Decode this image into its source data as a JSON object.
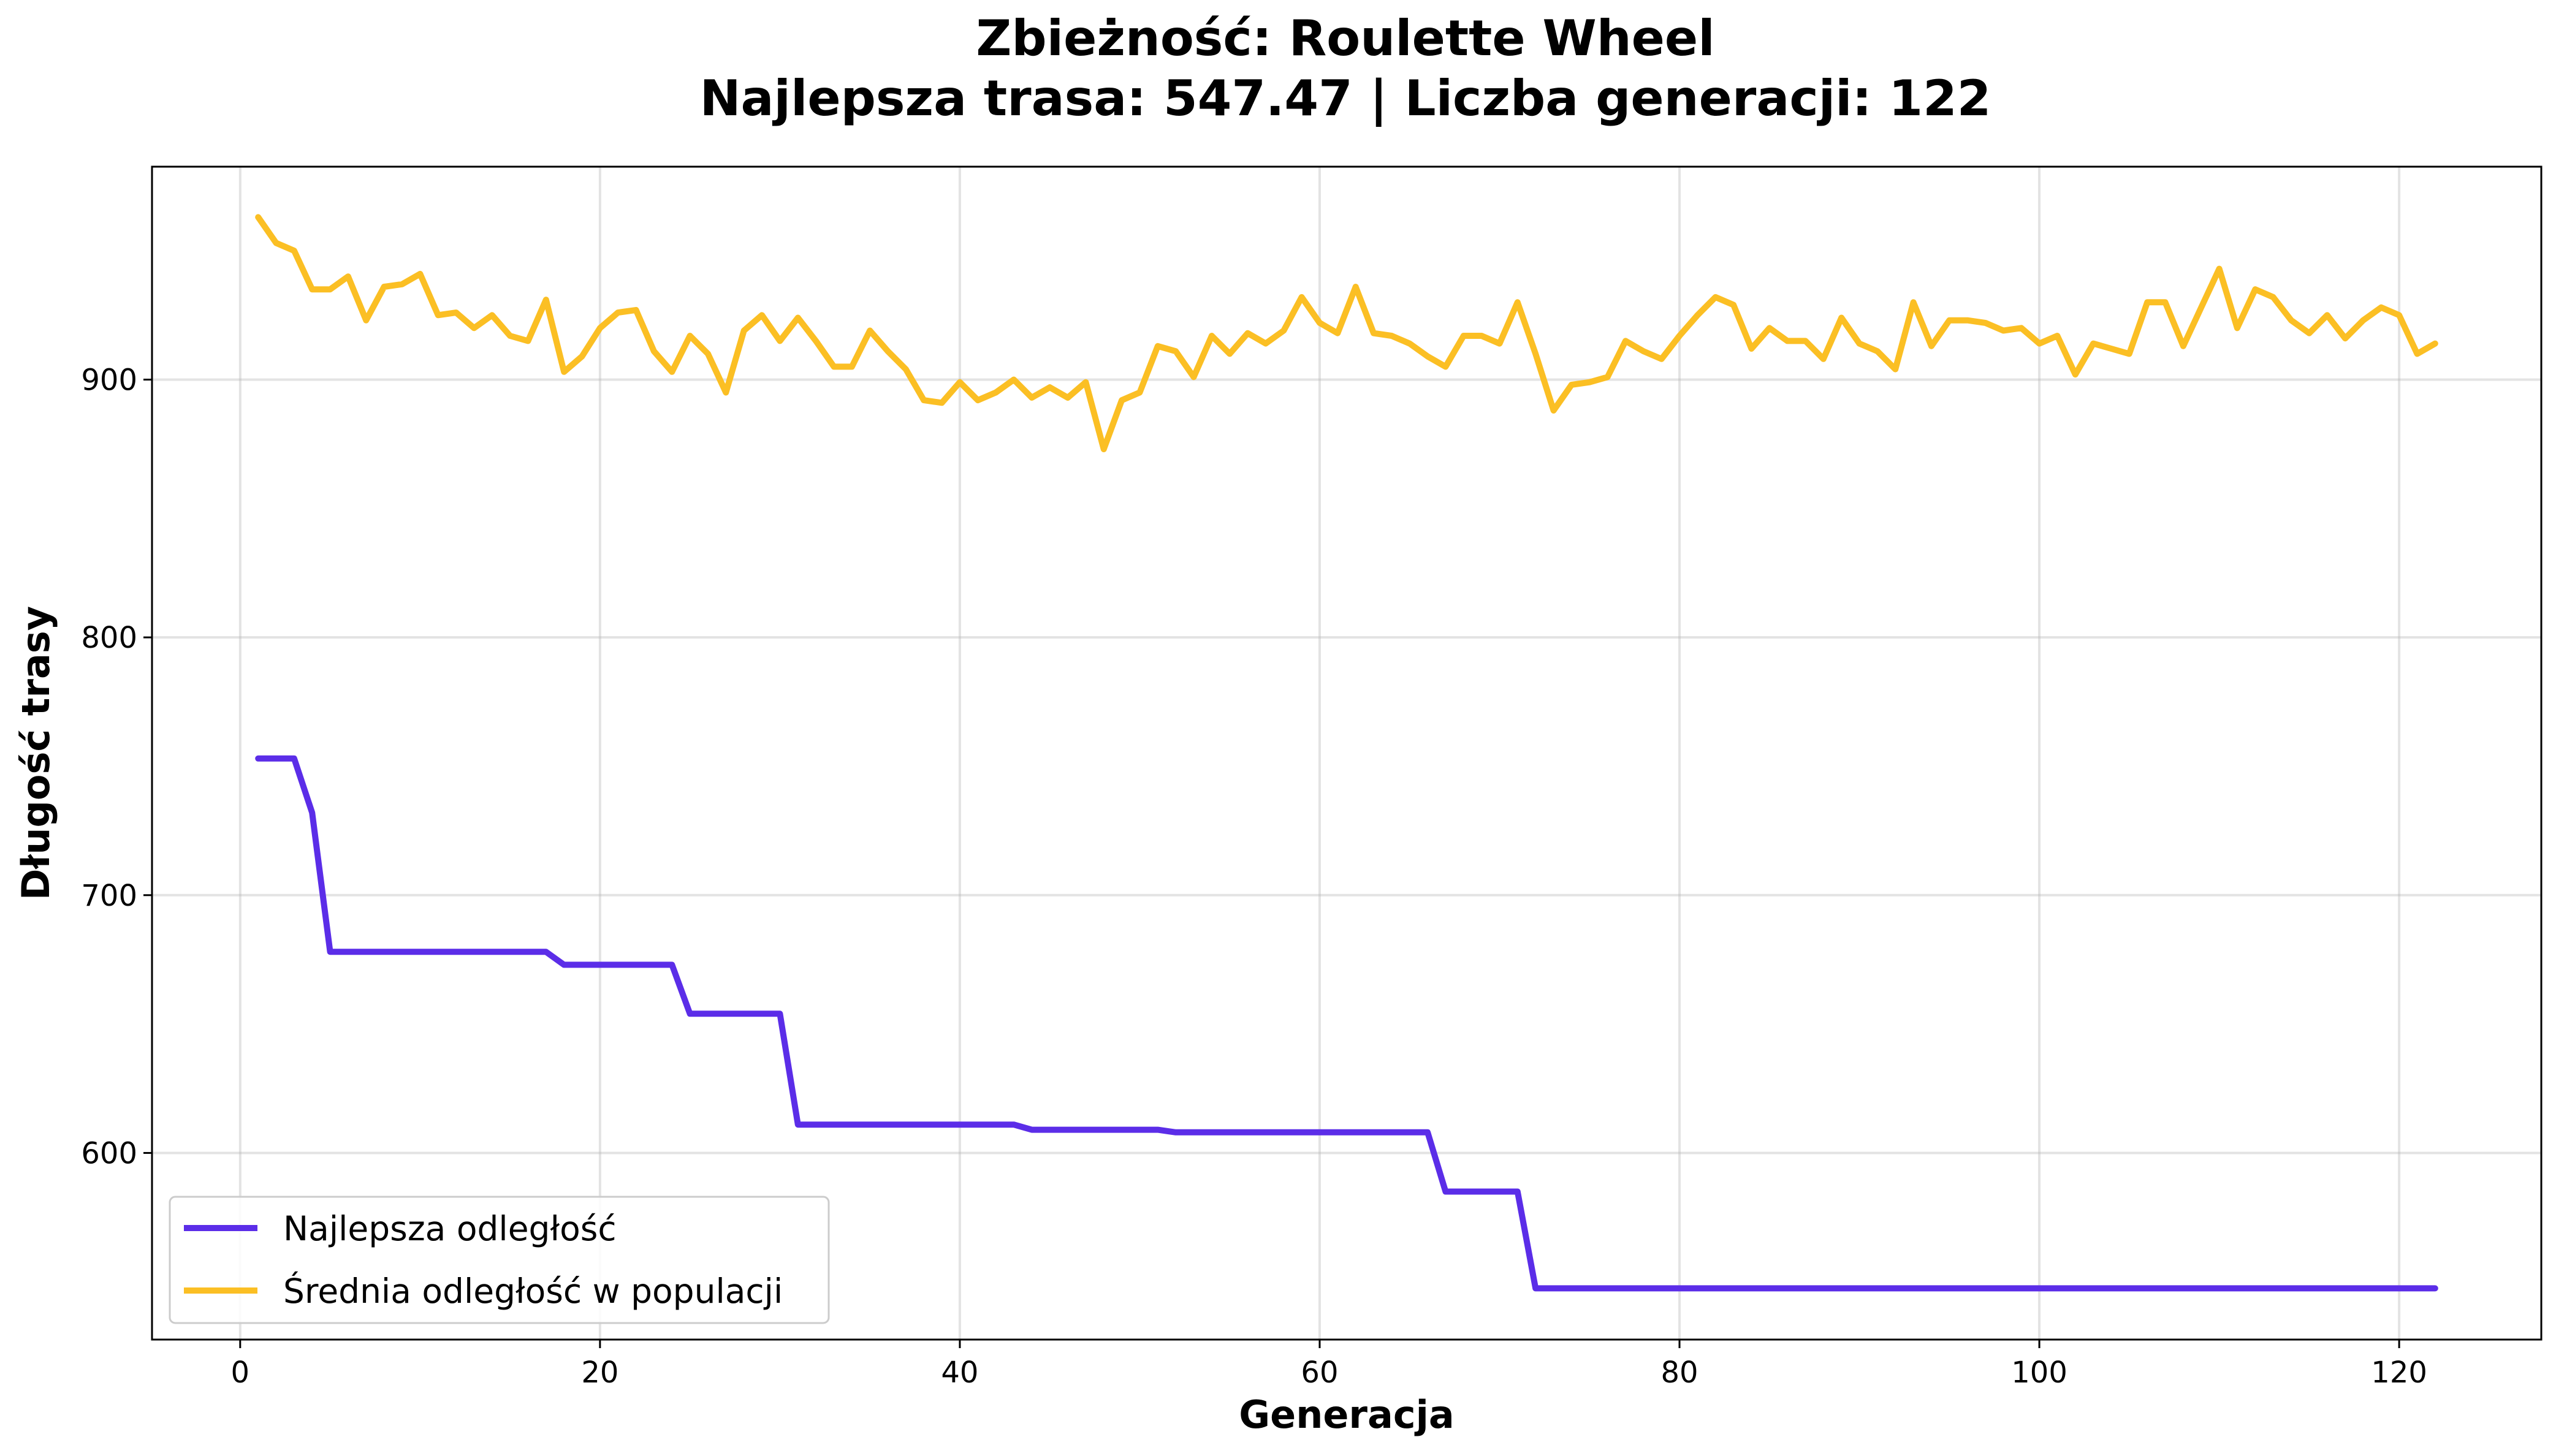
{
  "chart_data": {
    "type": "line",
    "title_line1": "Zbieżność: Roulette Wheel",
    "title_line2": "Najlepsza trasa: 547.47 | Liczba generacji: 122",
    "xlabel": "Generacja",
    "ylabel": "Długość trasy",
    "xlim": [
      -4.9,
      127.9
    ],
    "ylim": [
      527.6,
      982.6
    ],
    "xticks": [
      0,
      20,
      40,
      60,
      80,
      100,
      120
    ],
    "yticks": [
      600,
      700,
      800,
      900
    ],
    "grid": true,
    "legend_position": "lower-left",
    "series": [
      {
        "name": "Najlepsza odległość",
        "color": "#5b2de8",
        "x": [
          1,
          2,
          3,
          4,
          5,
          6,
          7,
          8,
          9,
          10,
          11,
          12,
          13,
          14,
          15,
          16,
          17,
          18,
          19,
          20,
          21,
          22,
          23,
          24,
          25,
          26,
          27,
          28,
          29,
          30,
          31,
          32,
          33,
          34,
          35,
          36,
          37,
          38,
          39,
          40,
          41,
          42,
          43,
          44,
          45,
          46,
          47,
          48,
          49,
          50,
          51,
          52,
          53,
          54,
          55,
          56,
          57,
          58,
          59,
          60,
          61,
          62,
          63,
          64,
          65,
          66,
          67,
          68,
          69,
          70,
          71,
          72,
          73,
          74,
          75,
          76,
          77,
          78,
          79,
          80,
          81,
          82,
          83,
          84,
          85,
          86,
          87,
          88,
          89,
          90,
          91,
          92,
          93,
          94,
          95,
          96,
          97,
          98,
          99,
          100,
          101,
          102,
          103,
          104,
          105,
          106,
          107,
          108,
          109,
          110,
          111,
          112,
          113,
          114,
          115,
          116,
          117,
          118,
          119,
          120,
          121,
          122
        ],
        "values": [
          753,
          753,
          753,
          732,
          678,
          678,
          678,
          678,
          678,
          678,
          678,
          678,
          678,
          678,
          678,
          678,
          678,
          673,
          673,
          673,
          673,
          673,
          673,
          673,
          654,
          654,
          654,
          654,
          654,
          654,
          611,
          611,
          611,
          611,
          611,
          611,
          611,
          611,
          611,
          611,
          611,
          611,
          611,
          609,
          609,
          609,
          609,
          609,
          609,
          609,
          609,
          608,
          608,
          608,
          608,
          608,
          608,
          608,
          608,
          608,
          608,
          608,
          608,
          608,
          608,
          608,
          585,
          585,
          585,
          585,
          585,
          547.47,
          547.47,
          547.47,
          547.47,
          547.47,
          547.47,
          547.47,
          547.47,
          547.47,
          547.47,
          547.47,
          547.47,
          547.47,
          547.47,
          547.47,
          547.47,
          547.47,
          547.47,
          547.47,
          547.47,
          547.47,
          547.47,
          547.47,
          547.47,
          547.47,
          547.47,
          547.47,
          547.47,
          547.47,
          547.47,
          547.47,
          547.47,
          547.47,
          547.47,
          547.47,
          547.47,
          547.47,
          547.47,
          547.47,
          547.47,
          547.47,
          547.47,
          547.47,
          547.47,
          547.47,
          547.47,
          547.47,
          547.47,
          547.47,
          547.47,
          547.47
        ]
      },
      {
        "name": "Średnia odległość w populacji",
        "color": "#fbbf24",
        "x": [
          1,
          2,
          3,
          4,
          5,
          6,
          7,
          8,
          9,
          10,
          11,
          12,
          13,
          14,
          15,
          16,
          17,
          18,
          19,
          20,
          21,
          22,
          23,
          24,
          25,
          26,
          27,
          28,
          29,
          30,
          31,
          32,
          33,
          34,
          35,
          36,
          37,
          38,
          39,
          40,
          41,
          42,
          43,
          44,
          45,
          46,
          47,
          48,
          49,
          50,
          51,
          52,
          53,
          54,
          55,
          56,
          57,
          58,
          59,
          60,
          61,
          62,
          63,
          64,
          65,
          66,
          67,
          68,
          69,
          70,
          71,
          72,
          73,
          74,
          75,
          76,
          77,
          78,
          79,
          80,
          81,
          82,
          83,
          84,
          85,
          86,
          87,
          88,
          89,
          90,
          91,
          92,
          93,
          94,
          95,
          96,
          97,
          98,
          99,
          100,
          101,
          102,
          103,
          104,
          105,
          106,
          107,
          108,
          109,
          110,
          111,
          112,
          113,
          114,
          115,
          116,
          117,
          118,
          119,
          120,
          121,
          122
        ],
        "values": [
          963,
          953,
          950,
          935,
          935,
          940,
          923,
          936,
          937,
          941,
          925,
          926,
          920,
          925,
          917,
          915,
          931,
          903,
          909,
          920,
          926,
          927,
          911,
          903,
          917,
          910,
          895,
          919,
          925,
          915,
          924,
          915,
          905,
          905,
          919,
          911,
          904,
          892,
          891,
          899,
          892,
          895,
          900,
          893,
          897,
          893,
          899,
          873,
          892,
          895,
          913,
          911,
          901,
          917,
          910,
          918,
          914,
          919,
          932,
          922,
          918,
          936,
          918,
          917,
          914,
          909,
          905,
          917,
          917,
          914,
          930,
          910,
          888,
          898,
          899,
          901,
          915,
          911,
          908,
          917,
          925,
          932,
          929,
          912,
          920,
          915,
          915,
          908,
          924,
          914,
          911,
          904,
          930,
          913,
          923,
          923,
          922,
          919,
          920,
          914,
          917,
          902,
          914,
          912,
          910,
          930,
          930,
          913,
          928,
          943,
          920,
          935,
          932,
          923,
          918,
          925,
          916,
          923,
          928,
          925,
          910,
          914
        ]
      }
    ]
  }
}
